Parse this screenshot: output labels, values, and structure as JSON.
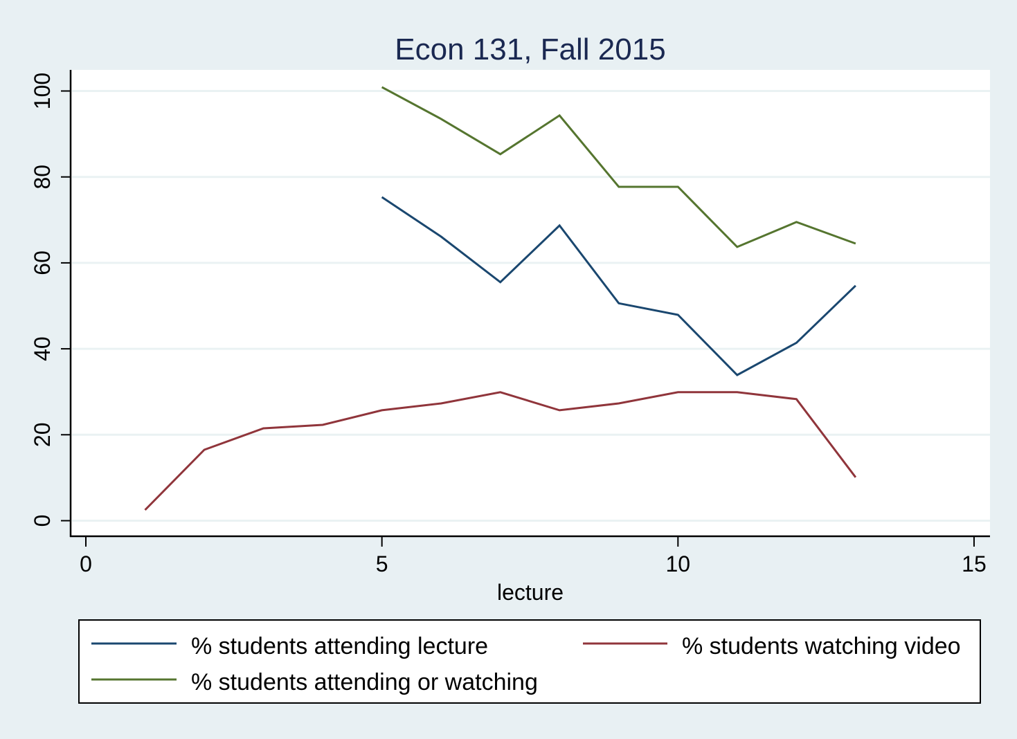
{
  "chart_data": {
    "type": "line",
    "title": "Econ 131, Fall 2015",
    "xlabel": "lecture",
    "ylabel": "",
    "xlim": [
      0,
      15
    ],
    "ylim": [
      0,
      100
    ],
    "x_ticks": [
      0,
      5,
      10,
      15
    ],
    "y_ticks": [
      0,
      20,
      40,
      60,
      80,
      100
    ],
    "grid": "horizontal",
    "legend_position": "bottom",
    "series": [
      {
        "name": "% students attending lecture",
        "color": "#1a476f",
        "x": [
          5,
          6,
          7,
          8,
          9,
          10,
          11,
          12,
          13
        ],
        "values": [
          75.3,
          66.1,
          55.5,
          68.7,
          50.6,
          47.9,
          33.9,
          41.4,
          54.7
        ]
      },
      {
        "name": "% students watching video",
        "color": "#90353b",
        "x": [
          1,
          2,
          3,
          4,
          5,
          6,
          7,
          8,
          9,
          10,
          11,
          12,
          13
        ],
        "values": [
          2.5,
          16.5,
          21.5,
          22.3,
          25.7,
          27.3,
          29.9,
          25.7,
          27.3,
          29.9,
          29.9,
          28.3,
          10.1
        ]
      },
      {
        "name": "% students attending or watching",
        "color": "#55752f",
        "x": [
          5,
          6,
          7,
          8,
          9,
          10,
          11,
          12,
          13
        ],
        "values": [
          100.9,
          93.5,
          85.3,
          94.3,
          77.7,
          77.7,
          63.7,
          69.5,
          64.5
        ]
      }
    ]
  },
  "colors": {
    "background": "#e8f0f3",
    "plot_background": "#ffffff",
    "gridline": "#eaf2f3",
    "title": "#1a2851"
  }
}
